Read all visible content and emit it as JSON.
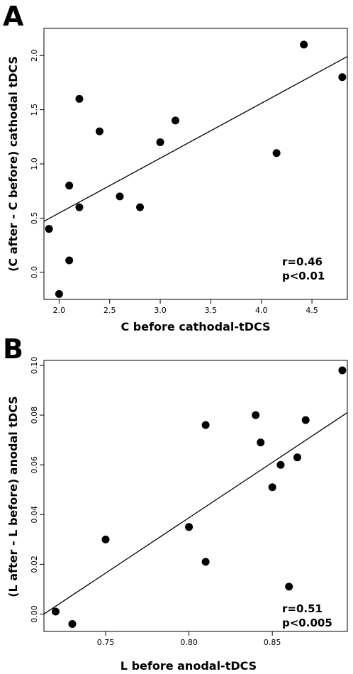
{
  "chart_data": [
    {
      "panel_label": "A",
      "type": "scatter",
      "xlabel": "C before cathodal-tDCS",
      "ylabel": "(C after - C before) cathodal tDCS",
      "xlim": [
        1.85,
        4.85
      ],
      "ylim": [
        -0.25,
        2.25
      ],
      "x_ticks": [
        2.0,
        2.5,
        3.0,
        3.5,
        4.0,
        4.5
      ],
      "x_tick_labels": [
        "2.0",
        "2.5",
        "3.0",
        "3.5",
        "4.0",
        "4.5"
      ],
      "y_ticks": [
        0.0,
        0.5,
        1.0,
        1.5,
        2.0
      ],
      "y_tick_labels": [
        "0.0",
        "0.5",
        "1.0",
        "1.5",
        "2.0"
      ],
      "points": [
        {
          "x": 1.9,
          "y": 0.4
        },
        {
          "x": 2.0,
          "y": -0.2
        },
        {
          "x": 2.1,
          "y": 0.11
        },
        {
          "x": 2.1,
          "y": 0.8
        },
        {
          "x": 2.2,
          "y": 0.6
        },
        {
          "x": 2.2,
          "y": 1.6
        },
        {
          "x": 2.4,
          "y": 1.3
        },
        {
          "x": 2.6,
          "y": 0.7
        },
        {
          "x": 2.8,
          "y": 0.6
        },
        {
          "x": 3.0,
          "y": 1.2
        },
        {
          "x": 3.15,
          "y": 1.4
        },
        {
          "x": 4.15,
          "y": 1.1
        },
        {
          "x": 4.42,
          "y": 2.1
        },
        {
          "x": 4.8,
          "y": 1.8
        }
      ],
      "fit_line": {
        "x": [
          1.85,
          4.85
        ],
        "y": [
          0.47,
          1.99
        ]
      },
      "annotation": [
        "r=0.46",
        "p<0.01"
      ],
      "annotation_placement": "bottom-right",
      "grid": false
    },
    {
      "panel_label": "B",
      "type": "scatter",
      "xlabel": "L before anodal-tDCS",
      "ylabel": "(L after - L before) anodal tDCS",
      "xlim": [
        0.713,
        0.895
      ],
      "ylim": [
        -0.007,
        0.102
      ],
      "x_ticks": [
        0.75,
        0.8,
        0.85
      ],
      "x_tick_labels": [
        "0.75",
        "0.80",
        "0.85"
      ],
      "y_ticks": [
        0.0,
        0.02,
        0.04,
        0.06,
        0.08,
        0.1
      ],
      "y_tick_labels": [
        "0.00",
        "0.02",
        "0.04",
        "0.06",
        "0.08",
        "0.10"
      ],
      "points": [
        {
          "x": 0.72,
          "y": 0.001
        },
        {
          "x": 0.73,
          "y": -0.004
        },
        {
          "x": 0.75,
          "y": 0.03
        },
        {
          "x": 0.8,
          "y": 0.035
        },
        {
          "x": 0.81,
          "y": 0.021
        },
        {
          "x": 0.81,
          "y": 0.076
        },
        {
          "x": 0.84,
          "y": 0.08
        },
        {
          "x": 0.843,
          "y": 0.069
        },
        {
          "x": 0.85,
          "y": 0.051
        },
        {
          "x": 0.855,
          "y": 0.06
        },
        {
          "x": 0.86,
          "y": 0.011
        },
        {
          "x": 0.865,
          "y": 0.063
        },
        {
          "x": 0.87,
          "y": 0.078
        },
        {
          "x": 0.892,
          "y": 0.098
        }
      ],
      "fit_line": {
        "x": [
          0.713,
          0.895
        ],
        "y": [
          0.0,
          0.081
        ]
      },
      "annotation": [
        "r=0.51",
        "p<0.005"
      ],
      "annotation_placement": "bottom-right",
      "grid": false
    }
  ]
}
